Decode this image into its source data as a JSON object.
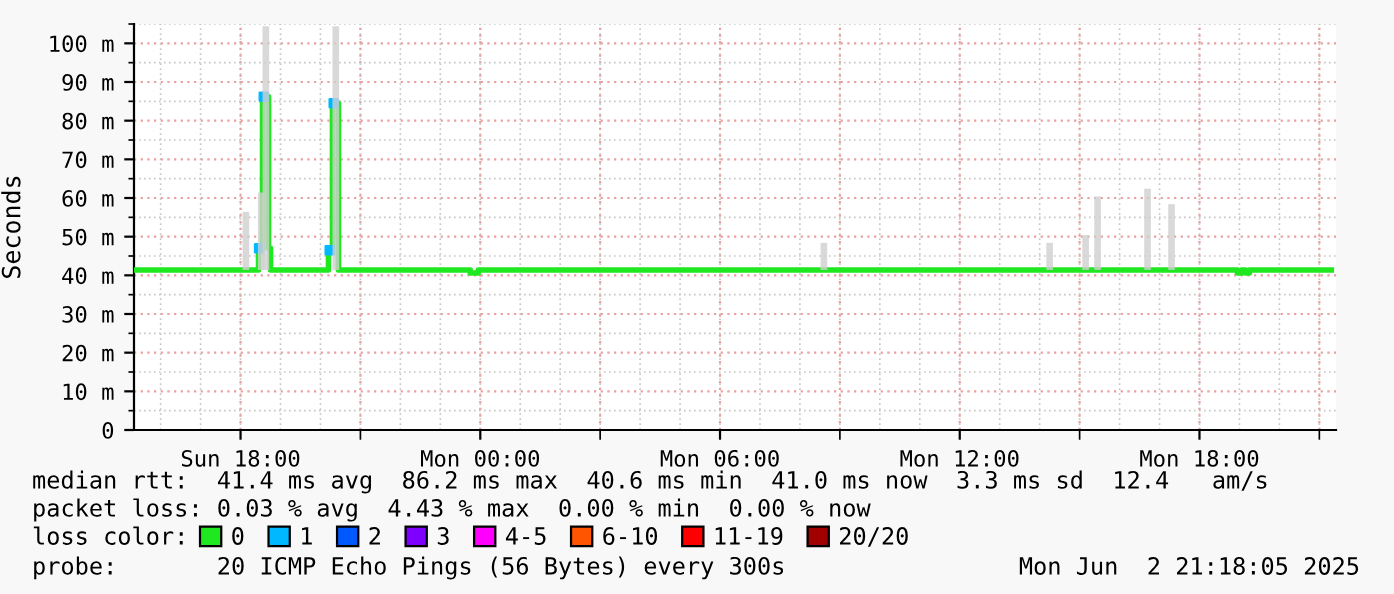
{
  "chart_data": {
    "type": "step",
    "ylabel": "Seconds",
    "xlim": [
      "2025-06-01T15:20",
      "2025-06-02T21:25"
    ],
    "xticks": [
      {
        "value": "2025-06-01T18:00",
        "label": "Sun 18:00"
      },
      {
        "value": "2025-06-01T21:00",
        "label": null
      },
      {
        "value": "2025-06-02T00:00",
        "label": "Mon 00:00"
      },
      {
        "value": "2025-06-02T03:00",
        "label": null
      },
      {
        "value": "2025-06-02T06:00",
        "label": "Mon 06:00"
      },
      {
        "value": "2025-06-02T09:00",
        "label": null
      },
      {
        "value": "2025-06-02T12:00",
        "label": "Mon 12:00"
      },
      {
        "value": "2025-06-02T15:00",
        "label": null
      },
      {
        "value": "2025-06-02T18:00",
        "label": "Mon 18:00"
      },
      {
        "value": "2025-06-02T21:00",
        "label": null
      }
    ],
    "ylim": [
      0,
      105
    ],
    "yticks": [
      0,
      {
        "value": 10,
        "label": "10 m"
      },
      {
        "value": 20,
        "label": "20 m"
      },
      {
        "value": 30,
        "label": "30 m"
      },
      {
        "value": 40,
        "label": "40 m"
      },
      {
        "value": 50,
        "label": "50 m"
      },
      {
        "value": 60,
        "label": "60 m"
      },
      {
        "value": 70,
        "label": "70 m"
      },
      {
        "value": 80,
        "label": "80 m"
      },
      {
        "value": 90,
        "label": "90 m"
      },
      {
        "value": 100,
        "label": "100 m"
      }
    ],
    "grid": true,
    "legend": "bottom",
    "legend_title": "loss color:",
    "series": [
      {
        "type": "bar",
        "color": "#d0d0d0",
        "x": [
          "2025-06-01T18:08",
          "2025-06-01T18:31",
          "2025-06-01T18:38",
          "2025-06-01T20:23",
          "2025-06-02T08:36",
          "2025-06-02T14:15",
          "2025-06-02T15:09",
          "2025-06-02T15:27",
          "2025-06-02T16:42",
          "2025-06-02T17:18"
        ],
        "base": [
          41.4,
          41.4,
          41.4,
          41.4,
          41.4,
          41.4,
          41.4,
          41.4,
          41.4,
          41.4
        ],
        "values": [
          15,
          20,
          63,
          63,
          7,
          7,
          9,
          19,
          21,
          17
        ]
      },
      {
        "name": "0",
        "color": "#20e820",
        "x": [
          "2025-06-01T15:20",
          "2025-06-01T18:27",
          "2025-06-01T18:33",
          "2025-06-01T18:42",
          "2025-06-01T18:45",
          "2025-06-01T20:12",
          "2025-06-01T20:18",
          "2025-06-01T20:27",
          "2025-06-01T23:45",
          "2025-06-01T23:57",
          "2025-06-02T18:57",
          "2025-06-02T19:03",
          "2025-06-02T19:09",
          "2025-06-02T19:15",
          "2025-06-02T21:18"
        ],
        "values": [
          41.4,
          47,
          86.2,
          47,
          41.4,
          46.5,
          84.5,
          41.4,
          40.6,
          41.4,
          40.6,
          41.4,
          40.6,
          41.4,
          41.4
        ]
      },
      {
        "name": "1",
        "type": "scatter",
        "color": "#00b8ff",
        "x": [
          "2025-06-01T18:28",
          "2025-06-01T18:35",
          "2025-06-01T20:14",
          "2025-06-01T20:20"
        ],
        "values": [
          47,
          86.2,
          46.5,
          84.5
        ]
      },
      {
        "name": "2",
        "type": "scatter",
        "color": "#0059ff"
      },
      {
        "name": "3",
        "type": "scatter",
        "color": "#7e00ff"
      },
      {
        "name": "4-5",
        "type": "scatter",
        "color": "#ff00ff"
      },
      {
        "name": "6-10",
        "type": "scatter",
        "color": "#ff5500"
      },
      {
        "name": "11-19",
        "type": "scatter",
        "color": "#ff0000"
      },
      {
        "name": "20/20",
        "type": "scatter",
        "color": "#a10000"
      }
    ],
    "annotations": [
      "median rtt:  41.4 ms avg  86.2 ms max  40.6 ms min  41.0 ms now  3.3 ms sd  12.4   am/s",
      "packet loss: 0.03 % avg  4.43 % max  0.00 % min  0.00 % now",
      "probe:       20 ICMP Echo Pings (56 Bytes) every 300s",
      "Mon Jun  2 21:18:05 2025"
    ]
  }
}
